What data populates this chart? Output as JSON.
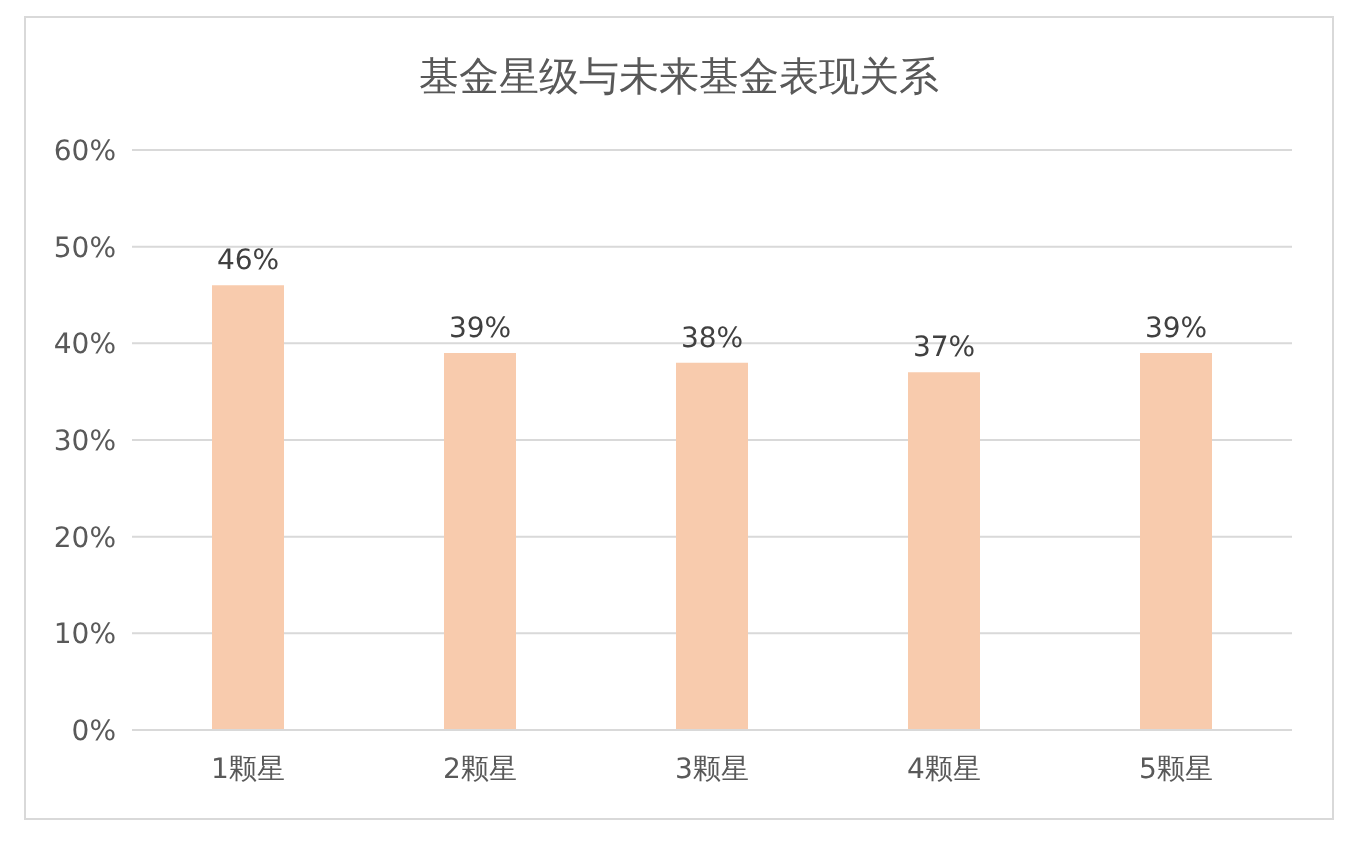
{
  "chart_data": {
    "type": "bar",
    "title": "基金星级与未来基金表现关系",
    "categories": [
      "1颗星",
      "2颗星",
      "3颗星",
      "4颗星",
      "5颗星"
    ],
    "values": [
      46,
      39,
      38,
      37,
      39
    ],
    "value_labels": [
      "46%",
      "39%",
      "38%",
      "37%",
      "39%"
    ],
    "color": "#f8cbad",
    "ylim": [
      0,
      60
    ],
    "yticks": [
      {
        "value": 0,
        "label": "0%"
      },
      {
        "value": 10,
        "label": "10%"
      },
      {
        "value": 20,
        "label": "20%"
      },
      {
        "value": 30,
        "label": "30%"
      },
      {
        "value": 40,
        "label": "40%"
      },
      {
        "value": 50,
        "label": "50%"
      },
      {
        "value": 60,
        "label": "60%"
      }
    ],
    "grid": "y"
  }
}
